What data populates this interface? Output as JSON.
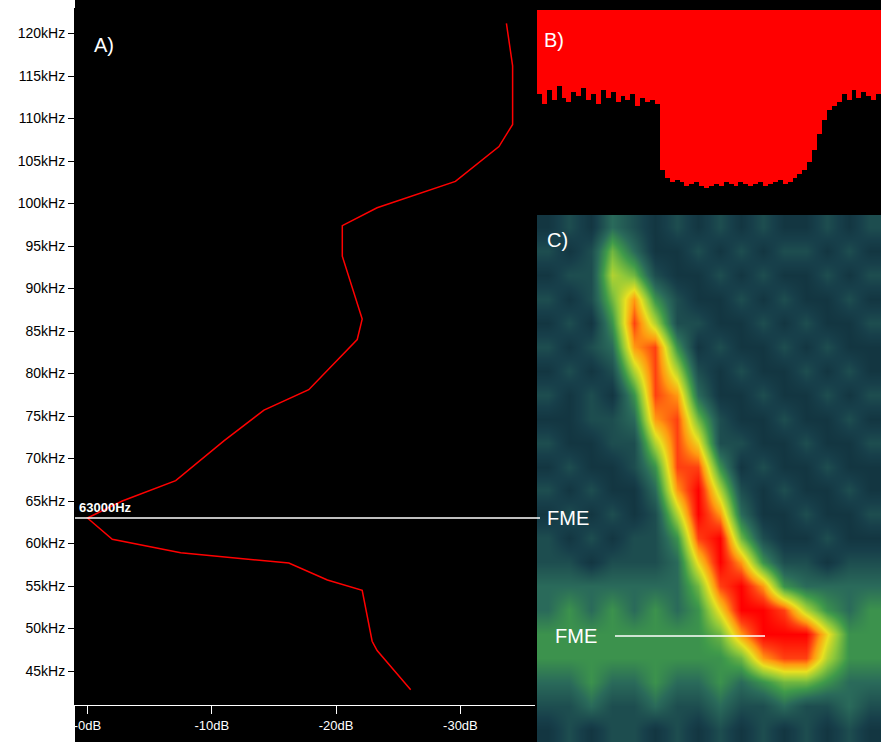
{
  "chart_data": [
    {
      "panel": "A)",
      "type": "line",
      "color": "#ff0000",
      "grid": false,
      "x": [
        -33.7,
        -34.2,
        -34.2,
        -33.1,
        -29.6,
        -23.3,
        -20.5,
        -20.5,
        -22.1,
        -21.7,
        -17.8,
        -14.2,
        -11.0,
        -7.1,
        -2.8,
        0,
        -2.0,
        -7.5,
        -16.2,
        -19.3,
        -22.1,
        -22.9,
        -23.3,
        -26.0
      ],
      "y": [
        121.2,
        116.2,
        109.3,
        106.7,
        102.6,
        99.5,
        97.4,
        93.8,
        86.4,
        84.0,
        78.1,
        75.7,
        72.1,
        67.4,
        65.0,
        63,
        60.5,
        58.9,
        57.7,
        55.7,
        54.5,
        48.5,
        47.4,
        42.8
      ],
      "xlim": [
        1,
        -36
      ],
      "xticks": [
        {
          "value": 0,
          "label": "-0dB"
        },
        {
          "value": -10,
          "label": "-10dB"
        },
        {
          "value": -20,
          "label": "-20dB"
        },
        {
          "value": -30,
          "label": "-30dB"
        }
      ],
      "ylim": [
        41,
        123
      ],
      "yticks": [
        {
          "value": 45,
          "label": "45kHz"
        },
        {
          "value": 50,
          "label": "50kHz"
        },
        {
          "value": 55,
          "label": "55kHz"
        },
        {
          "value": 60,
          "label": "60kHz"
        },
        {
          "value": 65,
          "label": "65kHz"
        },
        {
          "value": 70,
          "label": "70kHz"
        },
        {
          "value": 75,
          "label": "75kHz"
        },
        {
          "value": 80,
          "label": "80kHz"
        },
        {
          "value": 85,
          "label": "85kHz"
        },
        {
          "value": 90,
          "label": "90kHz"
        },
        {
          "value": 95,
          "label": "95kHz"
        },
        {
          "value": 100,
          "label": "100kHz"
        },
        {
          "value": 105,
          "label": "105kHz"
        },
        {
          "value": 110,
          "label": "110kHz"
        },
        {
          "value": 115,
          "label": "115kHz"
        },
        {
          "value": 120,
          "label": "120kHz"
        }
      ],
      "annotations": [
        {
          "text": "63000Hz",
          "y": 63
        },
        {
          "text": "FME",
          "y": 63
        }
      ]
    },
    {
      "panel": "B)",
      "type": "bar",
      "color": "#ff0000",
      "tick_labels": false,
      "ylim": [
        100,
        0
      ],
      "values": [
        42,
        47,
        40,
        45,
        38,
        44,
        46,
        41,
        43,
        39,
        45,
        42,
        47,
        40,
        44,
        41,
        46,
        43,
        45,
        42,
        48,
        44,
        46,
        45,
        47,
        80,
        84,
        86,
        85,
        86,
        88,
        87,
        86,
        88,
        89,
        88,
        87,
        88,
        86,
        87,
        88,
        86,
        87,
        88,
        87,
        86,
        88,
        87,
        86,
        85,
        87,
        86,
        84,
        82,
        80,
        76,
        70,
        62,
        55,
        50,
        48,
        46,
        42,
        45,
        40,
        44,
        41,
        43,
        45,
        42
      ]
    },
    {
      "panel": "C)",
      "type": "heatmap",
      "tick_labels": false,
      "zlim": [
        0,
        10
      ],
      "z": [
        [
          1,
          2,
          1,
          3,
          2,
          1,
          2,
          1,
          2,
          1,
          2,
          1,
          1,
          2,
          1,
          2
        ],
        [
          2,
          1,
          2,
          5,
          3,
          1,
          1,
          2,
          1,
          2,
          1,
          2,
          2,
          1,
          2,
          1
        ],
        [
          1,
          2,
          2,
          6,
          5,
          2,
          1,
          1,
          2,
          1,
          2,
          1,
          1,
          2,
          1,
          2
        ],
        [
          2,
          1,
          2,
          5,
          8,
          4,
          2,
          1,
          1,
          2,
          1,
          2,
          1,
          1,
          2,
          1
        ],
        [
          1,
          2,
          1,
          4,
          9,
          6,
          2,
          2,
          1,
          1,
          2,
          1,
          2,
          1,
          1,
          2
        ],
        [
          2,
          1,
          2,
          3,
          8,
          9,
          4,
          1,
          2,
          1,
          1,
          2,
          1,
          2,
          1,
          1
        ],
        [
          1,
          2,
          1,
          2,
          6,
          9,
          6,
          2,
          1,
          2,
          1,
          1,
          2,
          1,
          2,
          1
        ],
        [
          2,
          1,
          2,
          1,
          4,
          9,
          8,
          3,
          1,
          1,
          2,
          1,
          1,
          2,
          1,
          2
        ],
        [
          1,
          1,
          2,
          2,
          3,
          8,
          9,
          5,
          2,
          1,
          1,
          2,
          1,
          1,
          2,
          1
        ],
        [
          2,
          1,
          1,
          2,
          2,
          6,
          9,
          7,
          2,
          2,
          1,
          1,
          2,
          1,
          1,
          2
        ],
        [
          1,
          2,
          1,
          1,
          2,
          4,
          9,
          9,
          4,
          1,
          2,
          1,
          1,
          2,
          1,
          1
        ],
        [
          2,
          1,
          2,
          1,
          1,
          3,
          8,
          10,
          6,
          2,
          1,
          2,
          1,
          1,
          2,
          1
        ],
        [
          1,
          2,
          1,
          2,
          1,
          2,
          6,
          10,
          8,
          3,
          1,
          1,
          2,
          1,
          1,
          2
        ],
        [
          2,
          1,
          2,
          1,
          2,
          2,
          4,
          9,
          10,
          5,
          2,
          1,
          1,
          2,
          1,
          1
        ],
        [
          2,
          2,
          1,
          2,
          2,
          2,
          3,
          7,
          10,
          8,
          4,
          2,
          2,
          1,
          2,
          2
        ],
        [
          3,
          3,
          3,
          3,
          3,
          3,
          3,
          5,
          9,
          10,
          8,
          4,
          3,
          3,
          3,
          3
        ],
        [
          3,
          4,
          3,
          4,
          3,
          4,
          3,
          4,
          7,
          10,
          10,
          9,
          6,
          4,
          3,
          4
        ],
        [
          4,
          4,
          4,
          4,
          4,
          4,
          4,
          4,
          5,
          8,
          10,
          10,
          10,
          7,
          4,
          4
        ],
        [
          4,
          4,
          4,
          4,
          4,
          4,
          4,
          4,
          4,
          5,
          8,
          9,
          9,
          6,
          4,
          4
        ],
        [
          3,
          3,
          4,
          3,
          3,
          4,
          3,
          3,
          4,
          3,
          4,
          5,
          5,
          4,
          3,
          3
        ],
        [
          2,
          2,
          3,
          2,
          2,
          3,
          2,
          2,
          3,
          2,
          2,
          3,
          2,
          2,
          3,
          2
        ],
        [
          1,
          2,
          1,
          2,
          2,
          1,
          2,
          1,
          2,
          1,
          2,
          1,
          2,
          1,
          2,
          1
        ]
      ],
      "annotations": [
        {
          "text": "FME"
        }
      ]
    }
  ]
}
